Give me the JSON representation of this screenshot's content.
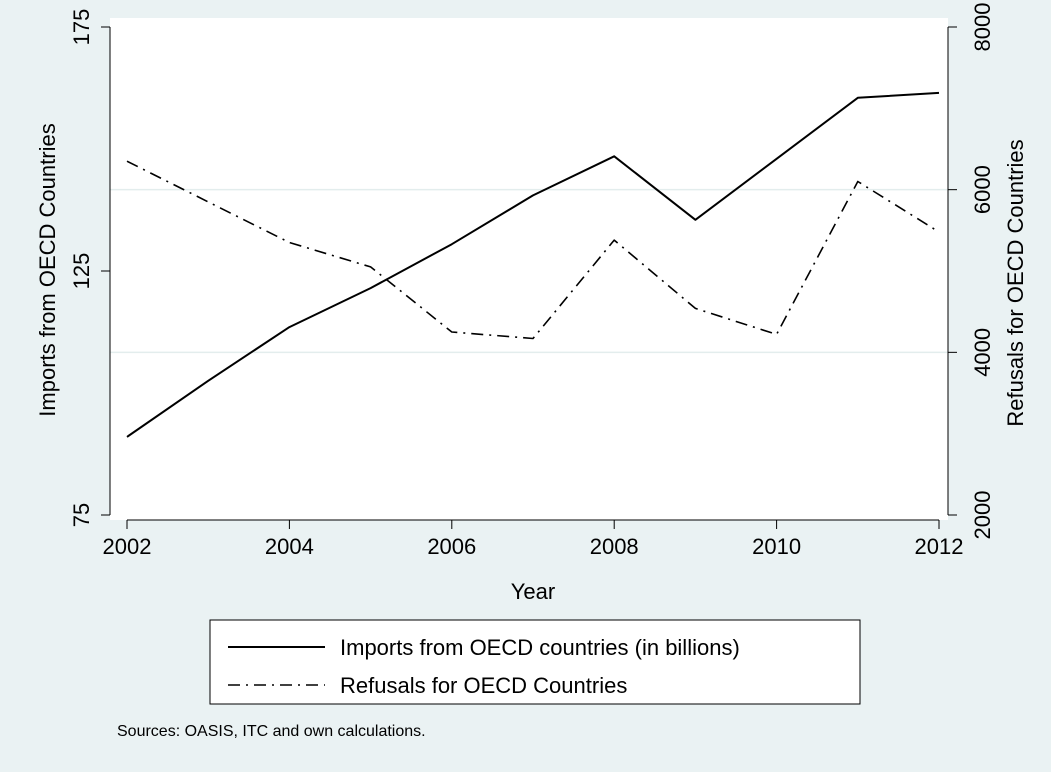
{
  "chart_data": {
    "type": "line",
    "xlabel": "Year",
    "x": [
      2002,
      2003,
      2004,
      2005,
      2006,
      2007,
      2008,
      2009,
      2010,
      2011,
      2012
    ],
    "x_ticks": [
      2002,
      2004,
      2006,
      2008,
      2010,
      2012
    ],
    "y_left": {
      "label": "Imports from OECD Countries",
      "ticks": [
        75,
        125,
        175
      ],
      "lim": [
        75,
        175
      ]
    },
    "y_right": {
      "label": "Refusals for OECD Countries",
      "ticks": [
        2000,
        4000,
        6000,
        8000
      ],
      "lim": [
        2000,
        8000
      ]
    },
    "grid": true,
    "series": [
      {
        "name": "Imports from OECD countries (in billions)",
        "axis": "left",
        "style": "solid",
        "color": "#000000",
        "values": [
          91,
          102.5,
          113.5,
          121.5,
          130.5,
          140.5,
          148.5,
          135.5,
          148,
          160.5,
          161.5
        ]
      },
      {
        "name": "Refusals for OECD Countries",
        "axis": "right",
        "style": "dash-dot",
        "color": "#000000",
        "values": [
          6350,
          5850,
          5350,
          5050,
          4250,
          4170,
          5380,
          4540,
          4220,
          6100,
          5480
        ]
      }
    ],
    "legend_position": "bottom",
    "note": "Sources: OASIS, ITC and own calculations."
  }
}
